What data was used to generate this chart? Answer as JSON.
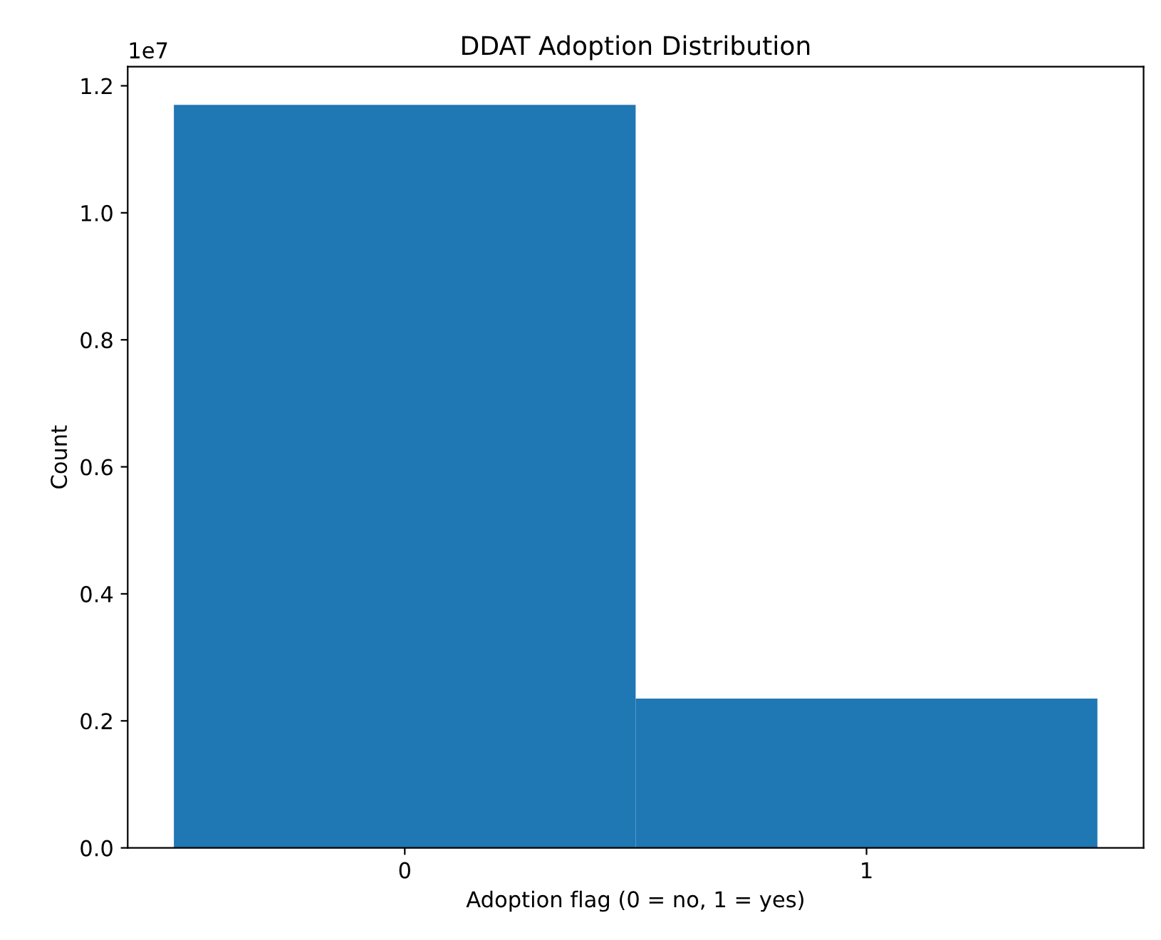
{
  "chart_data": {
    "type": "histogram",
    "title": "DDAT Adoption Distribution",
    "xlabel": "Adoption flag (0 = no, 1 = yes)",
    "ylabel": "Count",
    "bins": [
      -0.5,
      0.5,
      1.5
    ],
    "values": [
      1.17,
      0.235
    ],
    "color": "#1f77b4",
    "xlim": [
      -0.6,
      1.6
    ],
    "xticks": [
      0,
      1
    ],
    "ylim": [
      0,
      1.23
    ],
    "yticks": [
      {
        "value": 0,
        "label": "0.0"
      },
      0.2,
      0.4,
      0.6,
      0.8,
      {
        "value": 1,
        "label": "1.0"
      },
      1.2
    ],
    "annotations": [
      "1e7"
    ],
    "grid": false
  }
}
